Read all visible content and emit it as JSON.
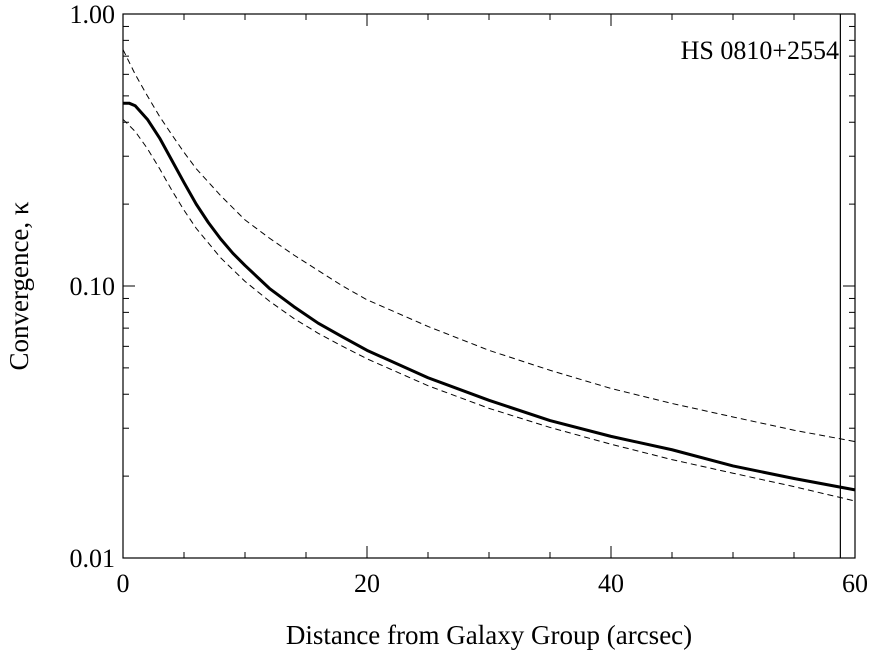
{
  "chart_data": {
    "type": "line",
    "title": "",
    "xlabel": "Distance from Galaxy Group (arcsec)",
    "ylabel": "Convergence, κ",
    "xlim": [
      0,
      60
    ],
    "ylim": [
      0.01,
      1.0
    ],
    "yscale": "log",
    "grid": false,
    "annotation": "HS 0810+2554",
    "vertical_marker_x": 58.8,
    "x_ticks": [
      {
        "value": 0,
        "label": "0"
      },
      {
        "value": 20,
        "label": "20"
      },
      {
        "value": 40,
        "label": "40"
      },
      {
        "value": 60,
        "label": "60"
      }
    ],
    "y_ticks": [
      {
        "value": 0.01,
        "label": "0.01"
      },
      {
        "value": 0.1,
        "label": "0.10"
      },
      {
        "value": 1.0,
        "label": "1.00"
      }
    ],
    "series": [
      {
        "style": "solid",
        "x": [
          0,
          0.5,
          1,
          2,
          3,
          4,
          5,
          6,
          7,
          8,
          9,
          10,
          12,
          14,
          16,
          18,
          20,
          25,
          30,
          35,
          40,
          45,
          50,
          55,
          60
        ],
        "y": [
          0.47,
          0.47,
          0.46,
          0.41,
          0.35,
          0.29,
          0.24,
          0.2,
          0.171,
          0.149,
          0.132,
          0.119,
          0.098,
          0.084,
          0.073,
          0.065,
          0.058,
          0.046,
          0.038,
          0.032,
          0.028,
          0.025,
          0.0218,
          0.0196,
          0.0178
        ]
      },
      {
        "style": "dashed",
        "x": [
          0,
          1,
          2,
          3,
          4,
          5,
          6,
          8,
          10,
          12,
          14,
          16,
          18,
          20,
          25,
          30,
          35,
          40,
          45,
          50,
          55,
          60
        ],
        "y": [
          0.74,
          0.6,
          0.5,
          0.42,
          0.36,
          0.31,
          0.27,
          0.215,
          0.175,
          0.15,
          0.13,
          0.114,
          0.1,
          0.089,
          0.071,
          0.058,
          0.049,
          0.042,
          0.037,
          0.033,
          0.0295,
          0.0268
        ]
      },
      {
        "style": "dashed",
        "x": [
          0,
          1,
          2,
          3,
          4,
          5,
          6,
          8,
          10,
          12,
          14,
          16,
          18,
          20,
          25,
          30,
          35,
          40,
          45,
          50,
          55,
          60
        ],
        "y": [
          0.41,
          0.37,
          0.32,
          0.27,
          0.225,
          0.19,
          0.163,
          0.127,
          0.104,
          0.088,
          0.076,
          0.067,
          0.06,
          0.054,
          0.043,
          0.0355,
          0.0302,
          0.0262,
          0.023,
          0.0205,
          0.0183,
          0.0162
        ]
      }
    ]
  }
}
